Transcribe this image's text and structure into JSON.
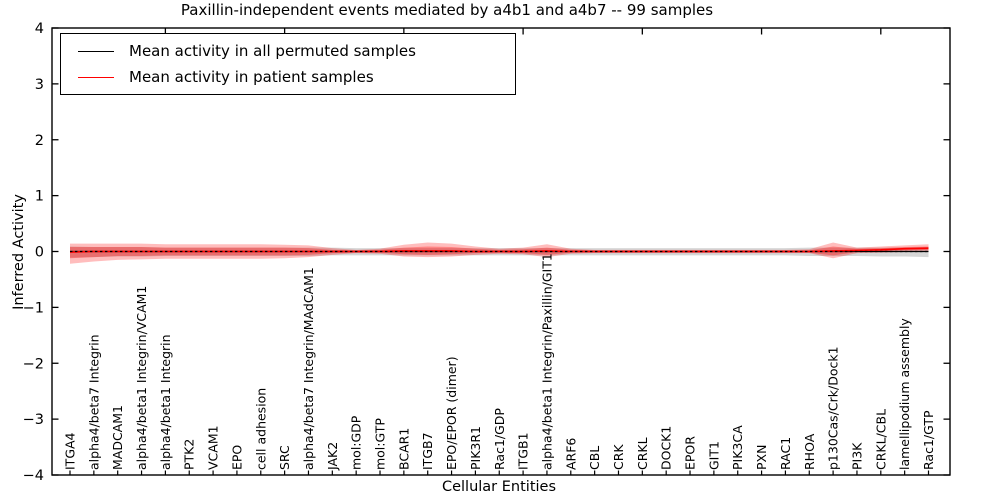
{
  "title": "Paxillin-independent events mediated by a4b1 and a4b7 -- 99 samples",
  "chart_data": {
    "type": "line",
    "title": "Paxillin-independent events mediated by a4b1 and a4b7 -- 99 samples",
    "xlabel": "Cellular Entities",
    "ylabel": "Inferred Activity",
    "ylim": [
      -4,
      4
    ],
    "grid": false,
    "legend_position": "upper left",
    "yticks": [
      {
        "v": 4,
        "label": "4"
      },
      {
        "v": 3,
        "label": "3"
      },
      {
        "v": 2,
        "label": "2"
      },
      {
        "v": 1,
        "label": "1"
      },
      {
        "v": 0,
        "label": "0"
      },
      {
        "v": -1,
        "label": "−1"
      },
      {
        "v": -2,
        "label": "−2"
      },
      {
        "v": -3,
        "label": "−3"
      },
      {
        "v": -4,
        "label": "−4"
      }
    ],
    "top_tick_indices": [
      4,
      9,
      14,
      19,
      24,
      29,
      34
    ],
    "categories": [
      "ITGA4",
      "alpha4/beta7 Integrin",
      "MADCAM1",
      "alpha4/beta1 Integrin/VCAM1",
      "alpha4/beta1 Integrin",
      "PTK2",
      "VCAM1",
      "EPO",
      "cell adhesion",
      "SRC",
      "alpha4/beta7 Integrin/MAdCAM1",
      "JAK2",
      "mol:GDP",
      "mol:GTP",
      "BCAR1",
      "ITGB7",
      "EPO/EPOR (dimer)",
      "PIK3R1",
      "Rac1/GDP",
      "ITGB1",
      "alpha4/beta1 Integrin/Paxillin/GIT1",
      "ARF6",
      "CBL",
      "CRK",
      "CRKL",
      "DOCK1",
      "EPOR",
      "GIT1",
      "PIK3CA",
      "PXN",
      "RAC1",
      "RHOA",
      "p130Cas/Crk/Dock1",
      "PI3K",
      "CRKL/CBL",
      "lamellipodium assembly",
      "Rac1/GTP"
    ],
    "legend": [
      {
        "label": "Mean activity in all permuted samples",
        "color": "#000000"
      },
      {
        "label": "Mean activity in patient samples",
        "color": "#ff0000"
      }
    ],
    "series": [
      {
        "name": "Mean activity in all permuted samples",
        "color": "#000000",
        "style": "solid-with-dashes",
        "values": [
          0,
          0,
          0,
          0,
          0,
          0,
          0,
          0,
          0,
          0,
          0,
          0,
          0,
          0,
          0,
          0,
          0,
          0,
          0,
          0,
          0,
          0,
          0,
          0,
          0,
          0,
          0,
          0,
          0,
          0,
          0,
          0,
          0,
          0,
          0,
          0,
          0
        ]
      },
      {
        "name": "Mean activity in patient samples",
        "color": "#ff0000",
        "style": "solid",
        "values": [
          -0.01,
          0,
          0,
          0,
          0,
          0,
          0,
          0,
          0,
          0,
          0,
          0,
          0,
          0,
          0.01,
          0.01,
          0.01,
          0,
          0,
          0,
          0.01,
          0,
          0,
          0,
          0,
          0,
          0,
          0,
          0,
          0,
          0,
          0,
          0.01,
          0.02,
          0.03,
          0.05,
          0.06
        ]
      }
    ],
    "bands": [
      {
        "name": "permuted-samples-band",
        "color": "#000000",
        "opacity": 0.16,
        "upper": [
          0.09,
          0.08,
          0.08,
          0.08,
          0.07,
          0.07,
          0.07,
          0.07,
          0.07,
          0.07,
          0.07,
          0.07,
          0.06,
          0.06,
          0.06,
          0.06,
          0.06,
          0.06,
          0.06,
          0.06,
          0.06,
          0.06,
          0.06,
          0.06,
          0.06,
          0.06,
          0.06,
          0.06,
          0.06,
          0.06,
          0.06,
          0.07,
          0.07,
          0.07,
          0.07,
          0.07,
          0.08
        ],
        "lower": [
          -0.11,
          -0.1,
          -0.09,
          -0.09,
          -0.08,
          -0.08,
          -0.08,
          -0.08,
          -0.08,
          -0.08,
          -0.08,
          -0.07,
          -0.07,
          -0.07,
          -0.07,
          -0.07,
          -0.07,
          -0.07,
          -0.07,
          -0.07,
          -0.07,
          -0.07,
          -0.07,
          -0.07,
          -0.07,
          -0.07,
          -0.07,
          -0.07,
          -0.07,
          -0.07,
          -0.07,
          -0.08,
          -0.08,
          -0.08,
          -0.09,
          -0.09,
          -0.1
        ]
      },
      {
        "name": "patient-samples-band-outer",
        "color": "#ff0000",
        "opacity": 0.26,
        "upper": [
          0.14,
          0.14,
          0.14,
          0.14,
          0.13,
          0.13,
          0.13,
          0.13,
          0.13,
          0.12,
          0.11,
          0.06,
          0.03,
          0.05,
          0.12,
          0.16,
          0.14,
          0.09,
          0.05,
          0.07,
          0.13,
          0.05,
          0.03,
          0.03,
          0.03,
          0.03,
          0.03,
          0.03,
          0.03,
          0.03,
          0.03,
          0.04,
          0.16,
          0.07,
          0.09,
          0.11,
          0.13
        ],
        "lower": [
          -0.22,
          -0.18,
          -0.15,
          -0.14,
          -0.13,
          -0.13,
          -0.13,
          -0.13,
          -0.13,
          -0.12,
          -0.1,
          -0.06,
          -0.03,
          -0.04,
          -0.09,
          -0.1,
          -0.09,
          -0.06,
          -0.04,
          -0.05,
          -0.1,
          -0.04,
          -0.03,
          -0.03,
          -0.03,
          -0.03,
          -0.03,
          -0.03,
          -0.03,
          -0.03,
          -0.03,
          -0.03,
          -0.12,
          -0.03,
          -0.02,
          -0.01,
          0.0
        ]
      },
      {
        "name": "patient-samples-band-inner",
        "color": "#ff0000",
        "opacity": 0.3,
        "upper": [
          0.08,
          0.08,
          0.08,
          0.08,
          0.07,
          0.07,
          0.07,
          0.07,
          0.07,
          0.07,
          0.06,
          0.03,
          0.02,
          0.03,
          0.07,
          0.09,
          0.08,
          0.05,
          0.03,
          0.04,
          0.07,
          0.03,
          0.02,
          0.02,
          0.02,
          0.02,
          0.02,
          0.02,
          0.02,
          0.02,
          0.02,
          0.02,
          0.09,
          0.05,
          0.06,
          0.08,
          0.09
        ],
        "lower": [
          -0.12,
          -0.1,
          -0.08,
          -0.08,
          -0.07,
          -0.07,
          -0.07,
          -0.07,
          -0.07,
          -0.07,
          -0.06,
          -0.03,
          -0.02,
          -0.02,
          -0.05,
          -0.06,
          -0.05,
          -0.03,
          -0.02,
          -0.03,
          -0.06,
          -0.02,
          -0.02,
          -0.02,
          -0.02,
          -0.02,
          -0.02,
          -0.02,
          -0.02,
          -0.02,
          -0.02,
          -0.02,
          -0.07,
          -0.01,
          0.0,
          0.02,
          0.03
        ]
      }
    ]
  },
  "colors": {
    "axes": "#000000",
    "background": "#ffffff",
    "permuted_line": "#000000",
    "patient_line": "#ff0000"
  }
}
